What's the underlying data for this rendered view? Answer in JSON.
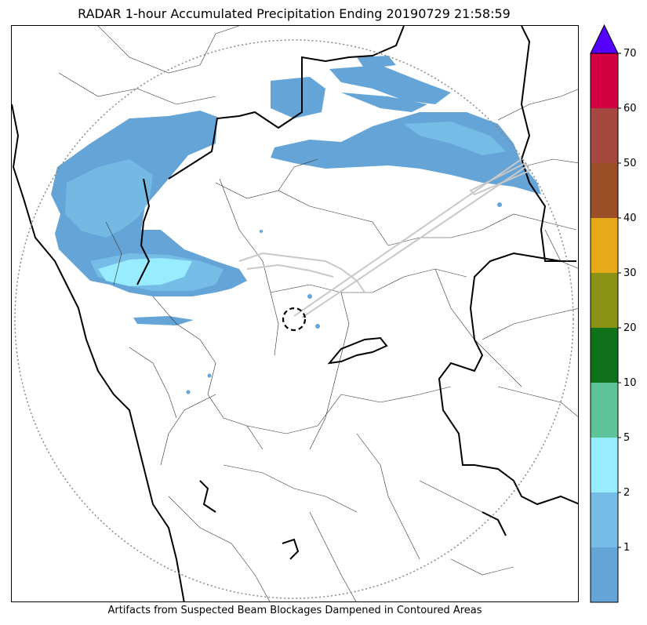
{
  "title": "RADAR 1-hour Accumulated Precipitation Ending 20190729 21:58:59",
  "caption": "Artifacts from Suspected Beam Blockages Dampened in Contoured Areas",
  "colorbar": {
    "extend": "max",
    "extend_color": "#5500ff",
    "bins": [
      {
        "label": "",
        "color": "#64a4d6"
      },
      {
        "label": "1",
        "color": "#75bde6"
      },
      {
        "label": "2",
        "color": "#97ecff"
      },
      {
        "label": "5",
        "color": "#5fc39a"
      },
      {
        "label": "10",
        "color": "#0f721a"
      },
      {
        "label": "20",
        "color": "#8a9215"
      },
      {
        "label": "30",
        "color": "#e8a919"
      },
      {
        "label": "40",
        "color": "#9a4f26"
      },
      {
        "label": "50",
        "color": "#a44840"
      },
      {
        "label": "60",
        "color": "#d30042"
      }
    ],
    "top_label": "70"
  },
  "map": {
    "range_ring": "dotted",
    "radar_site_marker": "dashed-circle",
    "precip_colors": {
      "light": "#64a4d6",
      "moderate": "#75bde6",
      "heavy": "#97ecff"
    },
    "blockage_color": "#c8c8c8"
  }
}
